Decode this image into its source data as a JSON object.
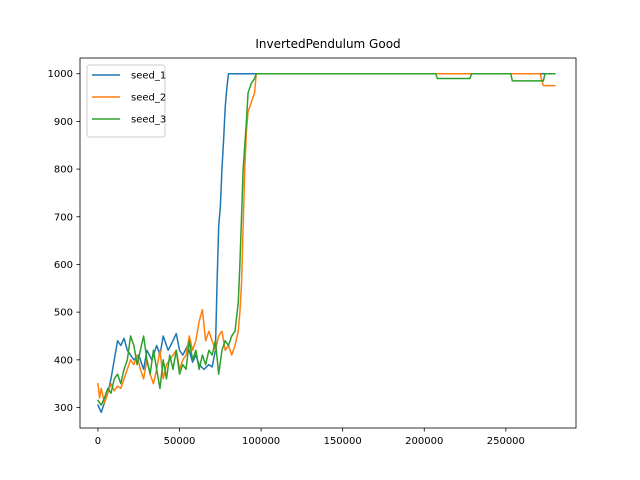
{
  "chart_data": {
    "type": "line",
    "title": "InvertedPendulum Good",
    "xlabel": "",
    "ylabel": "",
    "xlim": [
      -11000,
      293000
    ],
    "ylim": [
      257,
      1033
    ],
    "xticks": [
      0,
      50000,
      100000,
      150000,
      200000,
      250000
    ],
    "xtick_labels": [
      "0",
      "50000",
      "100000",
      "150000",
      "200000",
      "250000"
    ],
    "yticks": [
      300,
      400,
      500,
      600,
      700,
      800,
      900,
      1000
    ],
    "ytick_labels": [
      "300",
      "400",
      "500",
      "600",
      "700",
      "800",
      "900",
      "1000"
    ],
    "grid": false,
    "legend_position": "upper-left",
    "series": [
      {
        "name": "seed_1",
        "color": "#1f77b4",
        "x": [
          0,
          2000,
          4000,
          6000,
          8000,
          10000,
          12000,
          14000,
          16000,
          18000,
          20000,
          22000,
          25000,
          28000,
          30000,
          33000,
          36000,
          38000,
          40000,
          43000,
          46000,
          48000,
          50000,
          52000,
          55000,
          58000,
          60000,
          62000,
          65000,
          68000,
          70000,
          72000,
          73000,
          74000,
          75000,
          76000,
          77000,
          78000,
          79000,
          80000,
          82000,
          85000,
          100000,
          150000,
          200000,
          250000,
          280000
        ],
        "y": [
          305,
          290,
          310,
          330,
          360,
          400,
          440,
          430,
          445,
          420,
          410,
          400,
          410,
          380,
          420,
          400,
          430,
          410,
          450,
          420,
          440,
          455,
          420,
          410,
          430,
          395,
          410,
          390,
          380,
          390,
          385,
          420,
          560,
          680,
          720,
          800,
          860,
          930,
          970,
          1000,
          1000,
          1000,
          1000,
          1000,
          1000,
          1000,
          1000
        ]
      },
      {
        "name": "seed_2",
        "color": "#ff7f0e",
        "x": [
          0,
          1000,
          2000,
          4000,
          6000,
          8000,
          10000,
          12000,
          14000,
          16000,
          18000,
          20000,
          22000,
          24000,
          26000,
          28000,
          30000,
          32000,
          34000,
          36000,
          38000,
          40000,
          42000,
          44000,
          46000,
          48000,
          50000,
          52000,
          54000,
          56000,
          58000,
          60000,
          62000,
          64000,
          66000,
          68000,
          70000,
          72000,
          74000,
          76000,
          78000,
          80000,
          82000,
          84000,
          86000,
          87000,
          88000,
          89000,
          90000,
          91000,
          92000,
          94000,
          96000,
          97000,
          100000,
          150000,
          200000,
          250000,
          271000,
          273000,
          280000
        ],
        "y": [
          350,
          320,
          340,
          310,
          330,
          350,
          335,
          345,
          340,
          360,
          380,
          400,
          390,
          410,
          380,
          360,
          400,
          370,
          350,
          380,
          420,
          360,
          390,
          400,
          410,
          420,
          380,
          400,
          410,
          450,
          420,
          440,
          480,
          505,
          440,
          460,
          440,
          420,
          450,
          460,
          420,
          430,
          410,
          430,
          460,
          500,
          560,
          680,
          800,
          880,
          920,
          940,
          960,
          1000,
          1000,
          1000,
          1000,
          1000,
          1000,
          975,
          975
        ]
      },
      {
        "name": "seed_3",
        "color": "#2ca02c",
        "x": [
          0,
          2000,
          4000,
          6000,
          8000,
          10000,
          12000,
          14000,
          16000,
          18000,
          20000,
          22000,
          24000,
          26000,
          28000,
          30000,
          32000,
          34000,
          36000,
          38000,
          40000,
          42000,
          44000,
          46000,
          48000,
          50000,
          52000,
          54000,
          56000,
          58000,
          60000,
          62000,
          64000,
          66000,
          68000,
          70000,
          72000,
          74000,
          76000,
          78000,
          80000,
          82000,
          84000,
          86000,
          87000,
          88000,
          89000,
          90000,
          91000,
          92000,
          94000,
          96000,
          97000,
          100000,
          150000,
          207000,
          208000,
          228000,
          229000,
          253000,
          254000,
          273000,
          274000,
          280000
        ],
        "y": [
          315,
          305,
          320,
          340,
          330,
          360,
          370,
          350,
          380,
          400,
          450,
          430,
          390,
          420,
          450,
          400,
          370,
          420,
          380,
          340,
          400,
          360,
          410,
          380,
          420,
          370,
          390,
          380,
          440,
          400,
          420,
          380,
          410,
          390,
          420,
          410,
          440,
          370,
          420,
          440,
          430,
          450,
          460,
          520,
          600,
          700,
          800,
          850,
          900,
          960,
          980,
          990,
          1000,
          1000,
          1000,
          1000,
          990,
          990,
          1000,
          1000,
          985,
          985,
          1000,
          1000
        ]
      }
    ]
  }
}
